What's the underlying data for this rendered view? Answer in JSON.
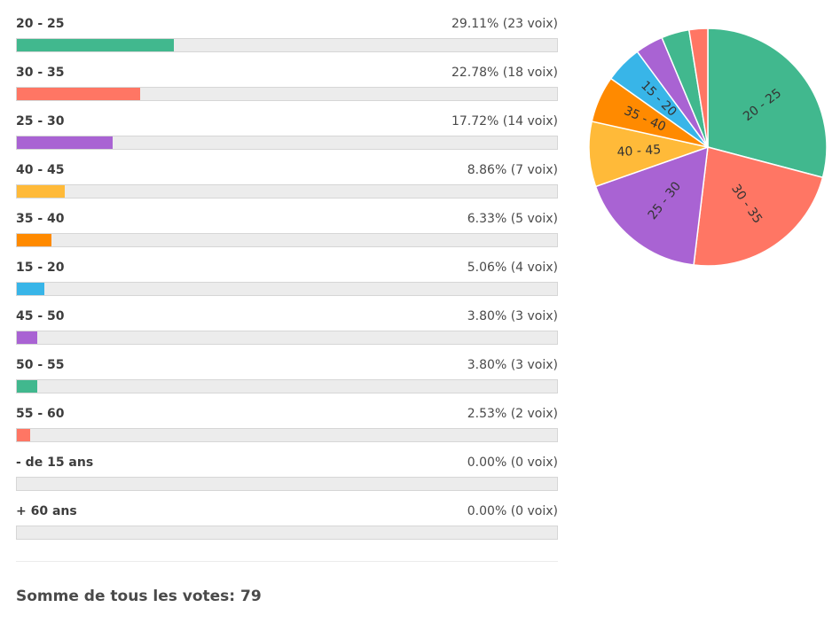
{
  "chart_data": {
    "type": "bar",
    "companion_type": "pie",
    "categories": [
      "20 - 25",
      "30 - 35",
      "25 - 30",
      "40 - 45",
      "35 - 40",
      "15 - 20",
      "45 - 50",
      "50 - 55",
      "55 - 60",
      "- de 15 ans",
      "+ 60 ans"
    ],
    "percent": [
      29.11,
      22.78,
      17.72,
      8.86,
      6.33,
      5.06,
      3.8,
      3.8,
      2.53,
      0.0,
      0.0
    ],
    "values": [
      23,
      18,
      14,
      7,
      5,
      4,
      3,
      3,
      2,
      0,
      0
    ],
    "value_texts": [
      "29.11% (23 voix)",
      "22.78% (18 voix)",
      "17.72% (14 voix)",
      "8.86% (7 voix)",
      "6.33% (5 voix)",
      "5.06% (4 voix)",
      "3.80% (3 voix)",
      "3.80% (3 voix)",
      "2.53% (2 voix)",
      "0.00% (0 voix)",
      "0.00% (0 voix)"
    ],
    "colors": [
      "#41b88e",
      "#ff7664",
      "#a963d3",
      "#ffba39",
      "#ff8a00",
      "#38b5e8",
      "#a963d3",
      "#41b88e",
      "#ff7664",
      "#ececec",
      "#ececec"
    ],
    "pie_labeled": [
      "20 - 25",
      "30 - 35",
      "25 - 30",
      "40 - 45",
      "35 - 40",
      "15 - 20"
    ]
  },
  "summary": {
    "total_text": "Somme de tous les votes: 79"
  }
}
